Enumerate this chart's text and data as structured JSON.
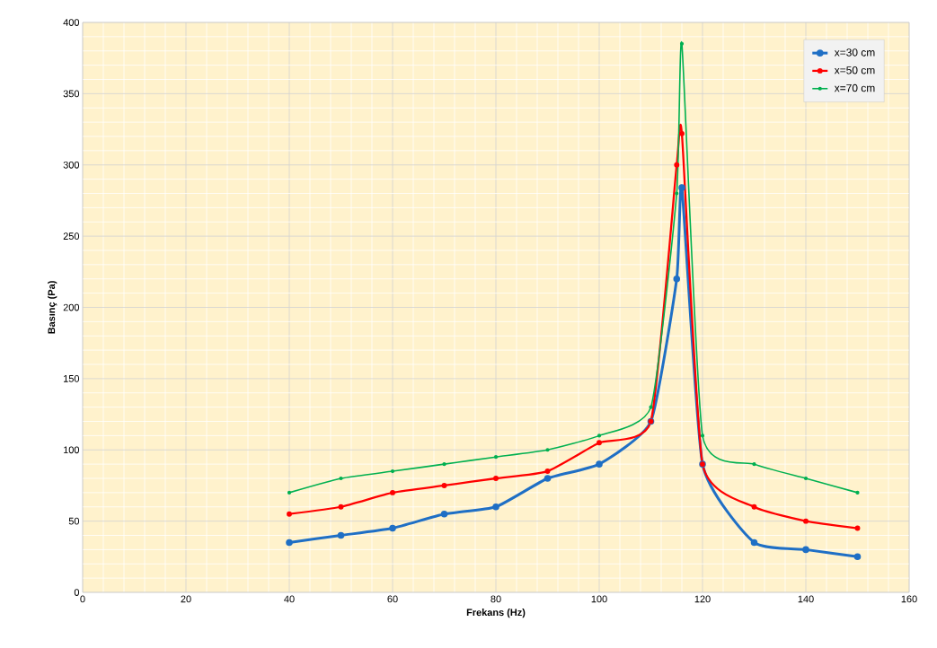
{
  "chart_data": {
    "type": "line",
    "xlabel": "Frekans (Hz)",
    "ylabel": "Basınç (Pa)",
    "x": [
      40,
      50,
      60,
      70,
      80,
      90,
      100,
      110,
      115,
      116,
      120,
      130,
      140,
      150
    ],
    "series": [
      {
        "name": "x=30 cm",
        "color": "#1f6fc5",
        "values": [
          35,
          40,
          45,
          55,
          60,
          80,
          90,
          120,
          220,
          284,
          90,
          35,
          30,
          25
        ]
      },
      {
        "name": "x=50 cm",
        "color": "#ff0000",
        "values": [
          55,
          60,
          70,
          75,
          80,
          85,
          105,
          120,
          300,
          322,
          90,
          60,
          50,
          45
        ]
      },
      {
        "name": "x=70 cm",
        "color": "#00b050",
        "values": [
          70,
          80,
          85,
          90,
          95,
          100,
          110,
          130,
          280,
          385,
          110,
          90,
          80,
          70
        ]
      }
    ],
    "xlim": [
      0,
      160
    ],
    "xticks": [
      0,
      20,
      40,
      60,
      80,
      100,
      120,
      140,
      160
    ],
    "ylim": [
      0,
      400
    ],
    "yticks": [
      0,
      50,
      100,
      150,
      200,
      250,
      300,
      350,
      400
    ],
    "grid": true,
    "legend": "top right",
    "marker": "circle",
    "line_style": "solid"
  }
}
